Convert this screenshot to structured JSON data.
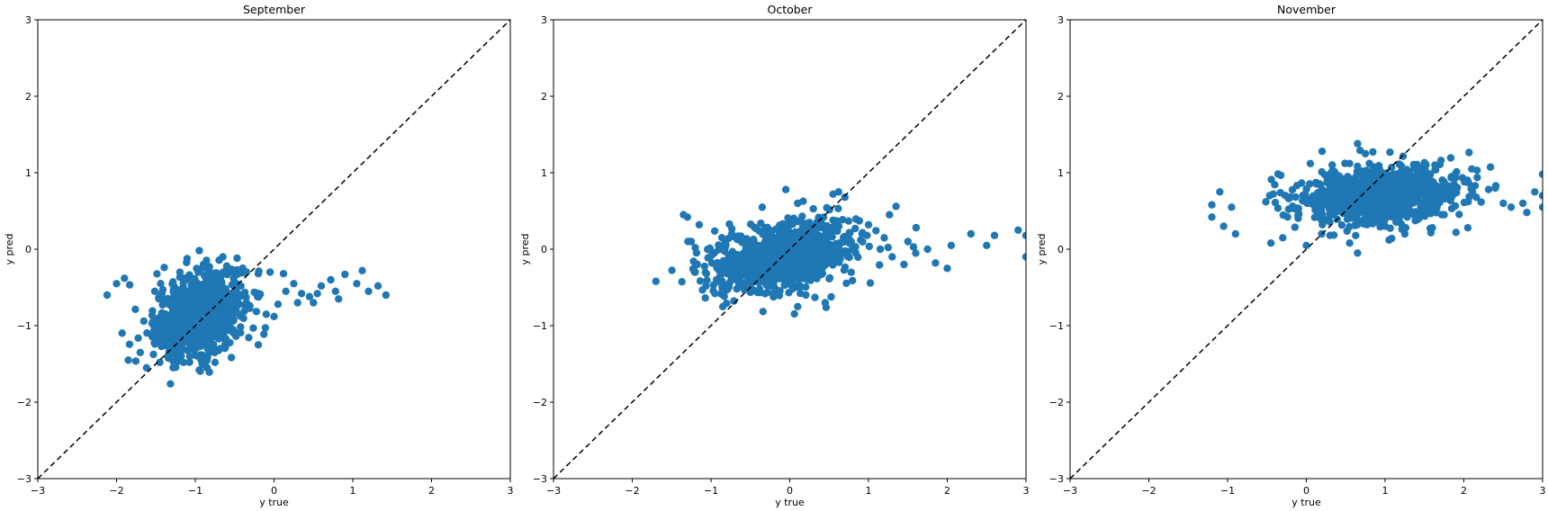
{
  "chart_data": [
    {
      "type": "scatter",
      "title": "September",
      "xlabel": "y true",
      "ylabel": "y pred",
      "xlim": [
        -3,
        3
      ],
      "ylim": [
        -3,
        3
      ],
      "xticks": [
        -3,
        -2,
        -1,
        0,
        1,
        2,
        3
      ],
      "yticks": [
        -3,
        -2,
        -1,
        0,
        1,
        2,
        3
      ],
      "grid": false,
      "reference_line": "y = x",
      "color": "#1f77b4",
      "cluster": {
        "cx": -0.95,
        "cy": -0.85,
        "sx": 0.28,
        "sy": 0.28,
        "corr": 0.35,
        "n": 950
      },
      "points": [
        [
          -2.12,
          -0.6
        ],
        [
          -2.0,
          -0.45
        ],
        [
          -1.9,
          -0.38
        ],
        [
          -1.85,
          -1.45
        ],
        [
          -1.7,
          -1.35
        ],
        [
          -1.62,
          -1.55
        ],
        [
          -1.45,
          -1.48
        ],
        [
          -1.35,
          -1.4
        ],
        [
          -1.25,
          -1.5
        ],
        [
          -1.15,
          -1.48
        ],
        [
          -0.95,
          -1.58
        ],
        [
          -0.85,
          -1.55
        ],
        [
          -0.75,
          -1.48
        ],
        [
          -0.2,
          -1.25
        ],
        [
          -0.65,
          -0.1
        ],
        [
          -0.6,
          -0.22
        ],
        [
          -0.35,
          -0.3
        ],
        [
          -0.2,
          -0.32
        ],
        [
          -0.05,
          -0.3
        ],
        [
          0.12,
          -0.32
        ],
        [
          0.25,
          -0.45
        ],
        [
          0.35,
          -0.58
        ],
        [
          0.45,
          -0.62
        ],
        [
          0.55,
          -0.58
        ],
        [
          0.6,
          -0.48
        ],
        [
          0.72,
          -0.4
        ],
        [
          0.78,
          -0.55
        ],
        [
          0.82,
          -0.65
        ],
        [
          0.9,
          -0.33
        ],
        [
          1.05,
          -0.45
        ],
        [
          1.12,
          -0.28
        ],
        [
          1.2,
          -0.55
        ],
        [
          1.32,
          -0.48
        ],
        [
          1.42,
          -0.6
        ],
        [
          0.05,
          -0.72
        ],
        [
          0.15,
          -0.55
        ],
        [
          0.3,
          -0.7
        ],
        [
          0.0,
          -0.88
        ],
        [
          -0.1,
          -0.85
        ],
        [
          0.5,
          -0.7
        ]
      ]
    },
    {
      "type": "scatter",
      "title": "October",
      "xlabel": "y true",
      "ylabel": "y pred",
      "xlim": [
        -3,
        3
      ],
      "ylim": [
        -3,
        3
      ],
      "xticks": [
        -3,
        -2,
        -1,
        0,
        1,
        2,
        3
      ],
      "yticks": [
        -3,
        -2,
        -1,
        0,
        1,
        2,
        3
      ],
      "grid": false,
      "reference_line": "y = x",
      "color": "#1f77b4",
      "cluster": {
        "cx": -0.1,
        "cy": -0.1,
        "sx": 0.45,
        "sy": 0.22,
        "corr": 0.3,
        "n": 1000
      },
      "points": [
        [
          -1.7,
          -0.42
        ],
        [
          -1.35,
          0.45
        ],
        [
          -1.3,
          0.42
        ],
        [
          -1.25,
          0.1
        ],
        [
          -1.2,
          -0.3
        ],
        [
          -1.15,
          0.32
        ],
        [
          -0.95,
          -0.58
        ],
        [
          -0.85,
          -0.75
        ],
        [
          -0.35,
          0.55
        ],
        [
          -0.05,
          0.78
        ],
        [
          0.1,
          0.6
        ],
        [
          0.4,
          0.35
        ],
        [
          0.55,
          0.72
        ],
        [
          0.62,
          0.75
        ],
        [
          0.7,
          0.68
        ],
        [
          1.0,
          0.32
        ],
        [
          1.35,
          0.56
        ],
        [
          0.1,
          -0.75
        ],
        [
          0.45,
          -0.7
        ],
        [
          0.9,
          0.12
        ],
        [
          1.15,
          0.0
        ],
        [
          1.3,
          -0.1
        ],
        [
          1.45,
          -0.2
        ],
        [
          1.6,
          -0.05
        ],
        [
          1.75,
          0.0
        ],
        [
          1.85,
          -0.18
        ],
        [
          2.0,
          -0.25
        ],
        [
          2.05,
          0.05
        ],
        [
          2.3,
          0.2
        ],
        [
          2.5,
          0.05
        ],
        [
          2.6,
          0.18
        ],
        [
          2.9,
          0.25
        ],
        [
          3.0,
          -0.1
        ],
        [
          3.0,
          0.18
        ],
        [
          1.2,
          0.15
        ],
        [
          1.5,
          0.1
        ]
      ]
    },
    {
      "type": "scatter",
      "title": "November",
      "xlabel": "y true",
      "ylabel": "y pred",
      "xlim": [
        -3,
        3
      ],
      "ylim": [
        -3,
        3
      ],
      "xticks": [
        -3,
        -2,
        -1,
        0,
        1,
        2,
        3
      ],
      "yticks": [
        -3,
        -2,
        -1,
        0,
        1,
        2,
        3
      ],
      "grid": false,
      "reference_line": "y = x",
      "color": "#1f77b4",
      "cluster": {
        "cx": 0.95,
        "cy": 0.7,
        "sx": 0.5,
        "sy": 0.18,
        "corr": 0.2,
        "n": 1000
      },
      "points": [
        [
          -1.2,
          0.58
        ],
        [
          -1.2,
          0.42
        ],
        [
          -1.1,
          0.75
        ],
        [
          -1.05,
          0.3
        ],
        [
          -0.95,
          0.55
        ],
        [
          -0.9,
          0.2
        ],
        [
          -0.45,
          0.08
        ],
        [
          -0.3,
          0.15
        ],
        [
          0.0,
          0.05
        ],
        [
          0.05,
          1.12
        ],
        [
          0.2,
          1.28
        ],
        [
          0.55,
          1.12
        ],
        [
          0.65,
          1.38
        ],
        [
          0.75,
          1.25
        ],
        [
          0.55,
          0.08
        ],
        [
          0.65,
          -0.05
        ],
        [
          1.05,
          0.12
        ],
        [
          1.25,
          0.2
        ],
        [
          1.9,
          0.22
        ],
        [
          2.05,
          0.28
        ],
        [
          2.1,
          1.05
        ],
        [
          2.4,
          0.8
        ],
        [
          2.6,
          0.55
        ],
        [
          2.75,
          0.6
        ],
        [
          2.8,
          0.48
        ],
        [
          2.9,
          0.75
        ],
        [
          3.0,
          0.98
        ],
        [
          3.0,
          0.7
        ],
        [
          3.0,
          0.55
        ],
        [
          2.5,
          0.6
        ],
        [
          1.75,
          0.45
        ],
        [
          0.3,
          0.18
        ],
        [
          1.6,
          0.28
        ]
      ]
    }
  ]
}
